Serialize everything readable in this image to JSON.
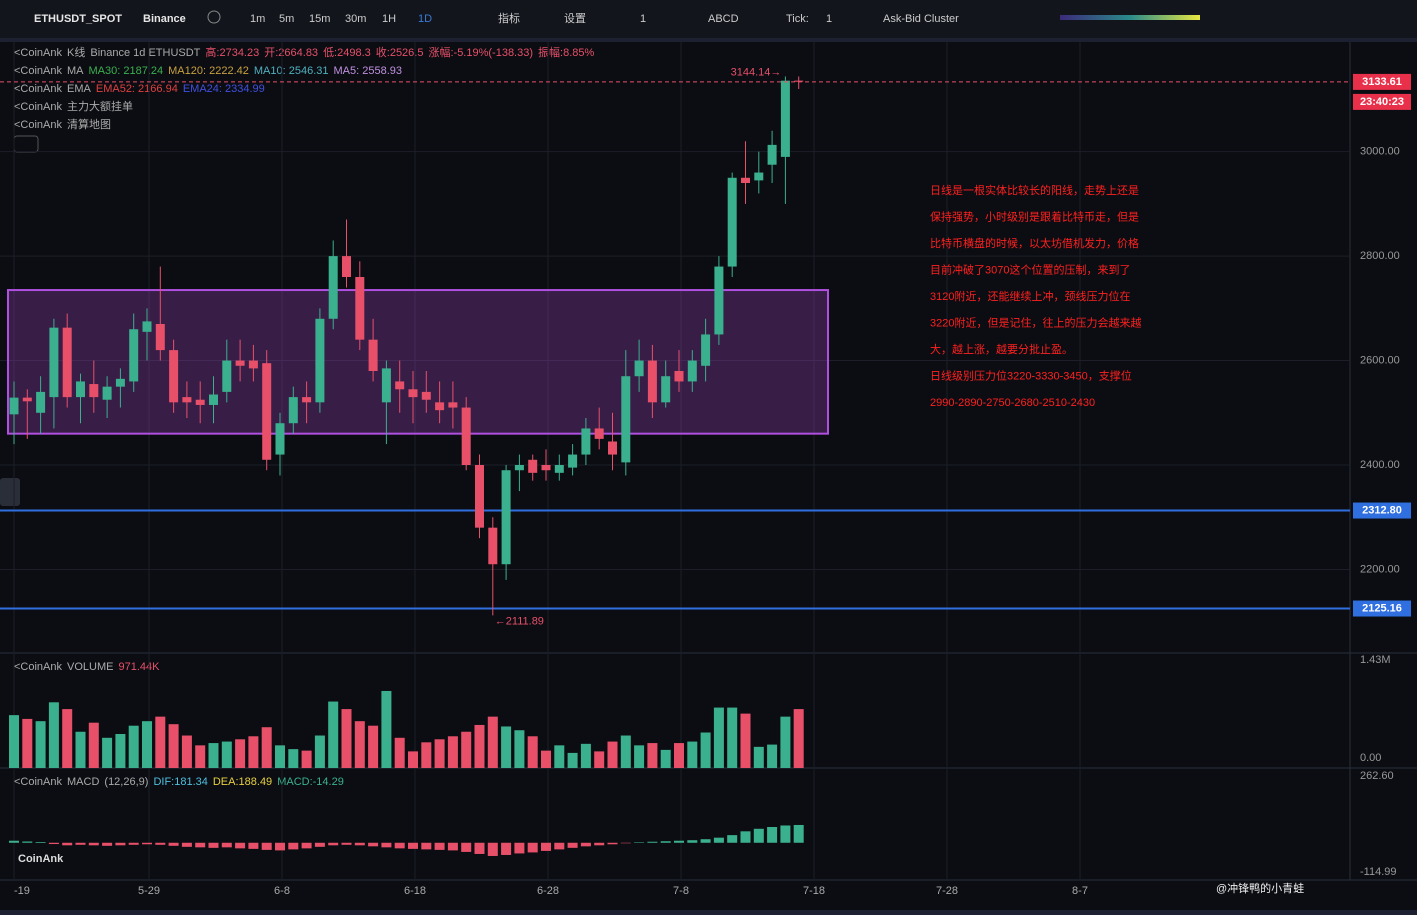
{
  "toolbar": {
    "symbol": "ETHUSDT_SPOT",
    "exchange": "Binance",
    "intervals": [
      "1m",
      "5m",
      "15m",
      "30m",
      "1H",
      "1D"
    ],
    "indicators": "指标",
    "settings": "设置",
    "layout_count": "1",
    "drawing": "ABCD",
    "tick_label": "Tick:",
    "tick_value": "1",
    "cluster": "Ask-Bid Cluster"
  },
  "legend": {
    "kline": [
      "<CoinAnk",
      "K线",
      "Binance 1d ETHUSDT",
      "高:2734.23",
      "开:2664.83",
      "低:2498.3",
      "收:2526.5",
      "涨幅:-5.19%(-138.33)",
      "振幅:8.85%"
    ],
    "ma": [
      "<CoinAnk",
      "MA",
      "MA30: 2187.24",
      "MA120: 2222.42",
      "MA10: 2546.31",
      "MA5: 2558.93"
    ],
    "ema": [
      "<CoinAnk",
      "EMA",
      "EMA52: 2166.94",
      "EMA24: 2334.99"
    ],
    "orders": [
      "<CoinAnk",
      "主力大额挂单"
    ],
    "liq": [
      "<CoinAnk",
      "清算地图"
    ],
    "volume": [
      "<CoinAnk",
      "VOLUME",
      "971.44K"
    ],
    "macd": [
      "<CoinAnk",
      "MACD",
      "(12,26,9)",
      "DIF:181.34",
      "DEA:188.49",
      "MACD:-14.29"
    ]
  },
  "chart_data": {
    "type": "candlestick",
    "open": [
      2497,
      2529,
      2500,
      2530,
      2663,
      2530,
      2555,
      2525,
      2550,
      2560,
      2655,
      2670,
      2620,
      2530,
      2525,
      2515,
      2540,
      2600,
      2600,
      2595,
      2420,
      2480,
      2530,
      2520,
      2680,
      2800,
      2760,
      2640,
      2520,
      2560,
      2545,
      2540,
      2520,
      2520,
      2510,
      2400,
      2280,
      2210,
      2390,
      2410,
      2400,
      2385,
      2395,
      2420,
      2470,
      2445,
      2405,
      2570,
      2600,
      2520,
      2580,
      2560,
      2590,
      2650,
      2780,
      2950,
      2945,
      2975,
      2990,
      3136
    ],
    "high": [
      2560,
      2545,
      2570,
      2680,
      2690,
      2575,
      2600,
      2570,
      2585,
      2690,
      2700,
      2780,
      2640,
      2560,
      2560,
      2570,
      2640,
      2640,
      2630,
      2620,
      2500,
      2550,
      2560,
      2700,
      2830,
      2870,
      2790,
      2680,
      2600,
      2600,
      2580,
      2580,
      2560,
      2560,
      2530,
      2420,
      2300,
      2400,
      2420,
      2420,
      2430,
      2420,
      2440,
      2490,
      2510,
      2500,
      2620,
      2640,
      2630,
      2600,
      2620,
      2620,
      2680,
      2800,
      2960,
      3020,
      3000,
      3040,
      3144,
      3144
    ],
    "low": [
      2440,
      2450,
      2460,
      2470,
      2510,
      2480,
      2500,
      2490,
      2510,
      2540,
      2600,
      2600,
      2500,
      2490,
      2480,
      2480,
      2520,
      2560,
      2560,
      2390,
      2380,
      2460,
      2480,
      2500,
      2660,
      2740,
      2620,
      2560,
      2440,
      2500,
      2480,
      2500,
      2480,
      2470,
      2390,
      2260,
      2112,
      2180,
      2350,
      2370,
      2370,
      2370,
      2380,
      2400,
      2430,
      2390,
      2380,
      2540,
      2490,
      2510,
      2540,
      2540,
      2560,
      2630,
      2760,
      2900,
      2920,
      2940,
      2900,
      3120
    ],
    "close": [
      2529,
      2522,
      2540,
      2663,
      2530,
      2560,
      2530,
      2550,
      2565,
      2660,
      2675,
      2620,
      2520,
      2520,
      2515,
      2535,
      2600,
      2590,
      2585,
      2410,
      2480,
      2530,
      2520,
      2680,
      2800,
      2760,
      2640,
      2580,
      2585,
      2545,
      2530,
      2525,
      2505,
      2510,
      2400,
      2280,
      2210,
      2390,
      2400,
      2385,
      2390,
      2400,
      2420,
      2470,
      2450,
      2420,
      2570,
      2600,
      2520,
      2570,
      2560,
      2600,
      2650,
      2780,
      2950,
      2940,
      2960,
      3013,
      3136,
      3134
    ],
    "up_color": "#3bb08f",
    "down_color": "#e8506a",
    "ylim": [
      2040,
      3210
    ],
    "yticks": [
      {
        "value": 3000,
        "label": "3000.00"
      },
      {
        "value": 2800,
        "label": "2800.00"
      },
      {
        "value": 2600,
        "label": "2600.00"
      },
      {
        "value": 2400,
        "label": "2400.00"
      },
      {
        "value": 2200,
        "label": "2200.00"
      }
    ],
    "x_axis_labels": [
      "-19",
      "5-29",
      "6-8",
      "6-18",
      "6-28",
      "7-8",
      "7-18",
      "7-28",
      "8-7"
    ],
    "last_price": {
      "value": 3133.61,
      "label": "3133.61"
    },
    "countdown": "23:40:23",
    "high_marker": {
      "value": 3144.14,
      "label": "3144.14→"
    },
    "low_marker": {
      "value": 2111.89,
      "label": "←2111.89"
    },
    "levels": [
      {
        "value": 2312.8,
        "label": "2312.80"
      },
      {
        "value": 2125.16,
        "label": "2125.16"
      }
    ],
    "box": {
      "top": 2735,
      "bottom": 2460
    },
    "volume": [
      700,
      650,
      620,
      870,
      780,
      480,
      600,
      400,
      450,
      560,
      620,
      680,
      580,
      430,
      300,
      330,
      350,
      380,
      420,
      540,
      300,
      250,
      230,
      430,
      880,
      780,
      620,
      560,
      1020,
      400,
      220,
      340,
      380,
      420,
      480,
      570,
      680,
      550,
      500,
      420,
      230,
      300,
      200,
      320,
      220,
      350,
      430,
      300,
      330,
      240,
      330,
      350,
      470,
      800,
      800,
      720,
      280,
      310,
      680,
      780
    ],
    "volume_ylim": [
      0,
      1430
    ],
    "volume_yticks": [
      {
        "value": 1430,
        "label": "1.43M"
      },
      {
        "value": 0,
        "label": "0.00"
      }
    ],
    "macd_hist": [
      8,
      5,
      3,
      -5,
      -10,
      -8,
      -10,
      -12,
      -10,
      -8,
      -6,
      -8,
      -12,
      -16,
      -18,
      -20,
      -18,
      -22,
      -24,
      -28,
      -30,
      -26,
      -22,
      -16,
      -10,
      -8,
      -10,
      -14,
      -18,
      -22,
      -24,
      -26,
      -28,
      -30,
      -36,
      -44,
      -52,
      -48,
      -42,
      -38,
      -32,
      -26,
      -20,
      -14,
      -10,
      -6,
      -2,
      2,
      4,
      6,
      8,
      10,
      14,
      20,
      30,
      45,
      55,
      62,
      68,
      70
    ],
    "macd_ylim": [
      -114.99,
      262.6
    ],
    "macd_yticks": [
      {
        "value": 262.6,
        "label": "262.60"
      },
      {
        "value": -114.99,
        "label": "-114.99"
      }
    ]
  },
  "annotation": [
    "日线是一根实体比较长的阳线，走势上还是",
    "保持强势，小时级别是跟着比特币走，但是",
    "比特币横盘的时候，以太坊借机发力，价格",
    "目前冲破了3070这个位置的压制，来到了",
    "3120附近，还能继续上冲，颈线压力位在",
    "3220附近，但是记住，往上的压力会越来越",
    "大，越上涨，越要分批止盈。",
    "日线级别压力位3220-3330-3450，支撑位",
    "2990-2890-2750-2680-2510-2430"
  ],
  "watermark": "CoinAnk",
  "credit": "@冲锋鸭的小青蛙"
}
